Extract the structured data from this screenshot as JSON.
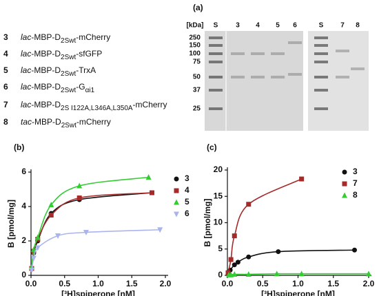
{
  "constructs": [
    {
      "number": "3",
      "promoter": "lac",
      "body": "-MBP-D",
      "subscript": "2Swt",
      "suffix": "-mCherry"
    },
    {
      "number": "4",
      "promoter": "lac",
      "body": "-MBP-D",
      "subscript": "2Swt",
      "suffix": "-sfGFP"
    },
    {
      "number": "5",
      "promoter": "lac",
      "body": "-MBP-D",
      "subscript": "2Swt",
      "suffix": "-TrxA"
    },
    {
      "number": "6",
      "promoter": "lac",
      "body": "-MBP-D",
      "subscript": "2Swt",
      "suffix": "-G",
      "suffix_subscript": "αi1"
    },
    {
      "number": "7",
      "promoter": "lac",
      "body": "-MBP-D",
      "subscript": "2S I122A,L346A,L350A",
      "suffix": "-mCherry"
    },
    {
      "number": "8",
      "promoter": "tac",
      "body": "-MBP-D",
      "subscript": "2Swt",
      "suffix": "-mCherry"
    }
  ],
  "gel": {
    "panel_label": "(a)",
    "unit_label": "[kDa]",
    "lanes": [
      "S",
      "3",
      "4",
      "5",
      "6",
      "S",
      "7",
      "8"
    ],
    "markers": [
      "250",
      "150",
      "100",
      "75",
      "50",
      "37",
      "25"
    ]
  },
  "chart_data": [
    {
      "type": "scatter",
      "panel_label": "(b)",
      "x_label": "[³H]spiperone [nM]",
      "y_label": "B [pmol/mg]",
      "xlim": [
        0,
        2
      ],
      "xticks": [
        {
          "value": 0,
          "label": "0.0"
        },
        0.5,
        {
          "value": 1,
          "label": "1.0"
        },
        1.5,
        {
          "value": 2,
          "label": "2.0"
        }
      ],
      "ylim": [
        0,
        6
      ],
      "yticks": [
        0,
        2,
        4,
        6
      ],
      "fit_line": true,
      "series": [
        {
          "name": "3",
          "color": "#111111",
          "marker": "circle",
          "x": [
            0.01,
            0.04,
            0.1,
            0.3,
            0.72,
            1.8
          ],
          "values": [
            0.4,
            1.3,
            2.0,
            3.6,
            4.4,
            4.8
          ]
        },
        {
          "name": "4",
          "color": "#a52a2a",
          "marker": "square",
          "x": [
            0.01,
            0.04,
            0.1,
            0.3,
            0.72,
            1.8
          ],
          "values": [
            0.4,
            1.4,
            2.1,
            3.5,
            4.5,
            4.8
          ]
        },
        {
          "name": "5",
          "color": "#33cc33",
          "marker": "triangle",
          "x": [
            0.01,
            0.04,
            0.1,
            0.3,
            0.72,
            1.75
          ],
          "values": [
            0.5,
            1.5,
            2.2,
            4.1,
            5.2,
            5.7
          ]
        },
        {
          "name": "6",
          "color": "#a9b4ee",
          "marker": "triangle-down",
          "x": [
            0.01,
            0.04,
            0.1,
            0.4,
            0.82,
            1.92
          ],
          "values": [
            0.3,
            1.0,
            1.6,
            2.3,
            2.5,
            2.65
          ]
        }
      ]
    },
    {
      "type": "scatter",
      "panel_label": "(c)",
      "x_label": "[³H]spiperone [nM]",
      "y_label": "B [pmol/mg]",
      "xlim": [
        0,
        2
      ],
      "xticks": [
        {
          "value": 0,
          "label": "0.0"
        },
        0.5,
        {
          "value": 1,
          "label": "1.0"
        },
        1.5,
        {
          "value": 2,
          "label": "2.0"
        }
      ],
      "ylim": [
        0,
        20
      ],
      "yticks": [
        0,
        5,
        10,
        15,
        20
      ],
      "fit_line": true,
      "series": [
        {
          "name": "3",
          "color": "#111111",
          "marker": "circle",
          "x": [
            0.01,
            0.04,
            0.1,
            0.15,
            0.3,
            0.72,
            1.8
          ],
          "values": [
            0.3,
            1.0,
            2.0,
            2.5,
            3.5,
            4.5,
            4.8
          ]
        },
        {
          "name": "7",
          "color": "#a52a2a",
          "marker": "square",
          "x": [
            0.01,
            0.05,
            0.1,
            0.3,
            1.05
          ],
          "values": [
            0.5,
            3,
            7.5,
            13.5,
            18.3
          ]
        },
        {
          "name": "8",
          "color": "#33cc33",
          "marker": "triangle",
          "x": [
            0.02,
            0.05,
            0.1,
            0.3,
            0.7,
            1.05,
            2.0
          ],
          "values": [
            0.1,
            0.1,
            0.2,
            0.2,
            0.3,
            0.3,
            0.3
          ]
        }
      ]
    }
  ]
}
